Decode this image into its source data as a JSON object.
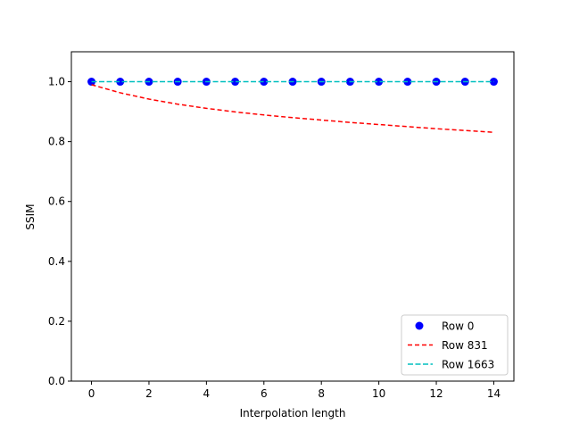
{
  "chart_data": {
    "type": "line",
    "title": "",
    "xlabel": "Interpolation length",
    "ylabel": "SSIM",
    "xlim": [
      -0.7,
      14.7
    ],
    "ylim": [
      0.0,
      1.1
    ],
    "x_ticks": [
      0,
      2,
      4,
      6,
      8,
      10,
      12,
      14
    ],
    "y_ticks": [
      0.0,
      0.2,
      0.4,
      0.6,
      0.8,
      1.0
    ],
    "x_tick_labels": [
      "0",
      "2",
      "4",
      "6",
      "8",
      "10",
      "12",
      "14"
    ],
    "y_tick_labels": [
      "0.0",
      "0.2",
      "0.4",
      "0.6",
      "0.8",
      "1.0"
    ],
    "grid": false,
    "legend_position": "lower-right",
    "x": [
      0,
      1,
      2,
      3,
      4,
      5,
      6,
      7,
      8,
      9,
      10,
      11,
      12,
      13,
      14
    ],
    "series": [
      {
        "name": "Row 0",
        "style": "markers",
        "color": "#0000ff",
        "values": [
          1.0,
          1.0,
          1.0,
          1.0,
          1.0,
          1.0,
          1.0,
          1.0,
          1.0,
          1.0,
          1.0,
          1.0,
          1.0,
          1.0,
          1.0
        ]
      },
      {
        "name": "Row 831",
        "style": "dashed",
        "color": "#ff0000",
        "values": [
          0.99,
          0.963,
          0.942,
          0.925,
          0.911,
          0.899,
          0.889,
          0.88,
          0.872,
          0.864,
          0.857,
          0.85,
          0.843,
          0.837,
          0.831
        ]
      },
      {
        "name": "Row 1663",
        "style": "dashed",
        "color": "#00bfbf",
        "values": [
          1.0,
          1.0,
          1.0,
          1.0,
          1.0,
          1.0,
          1.0,
          1.0,
          1.0,
          1.0,
          1.0,
          1.0,
          1.0,
          1.0,
          1.0
        ]
      }
    ]
  }
}
